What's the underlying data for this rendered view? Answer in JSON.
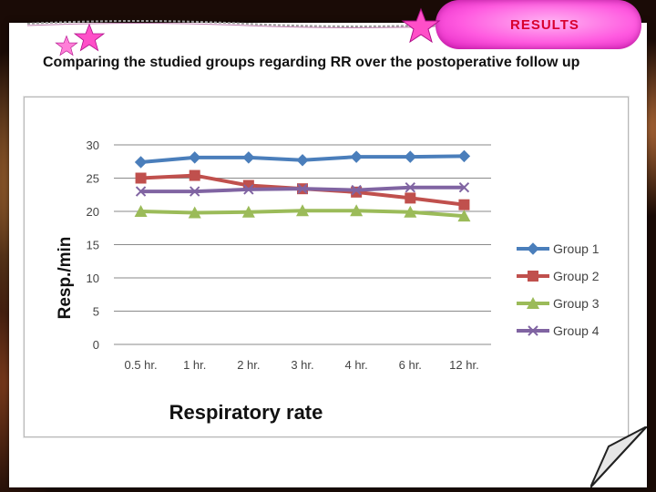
{
  "header": {
    "badge_label": "RESULTS",
    "subtitle": "Comparing the studied groups regarding RR over the postoperative follow up"
  },
  "colors": {
    "accent_pink": "#ff5ae0",
    "results_text": "#d8002e"
  },
  "icons": [
    "star-icon",
    "page-curl-icon"
  ],
  "chart_data": {
    "type": "line",
    "title": "Respiratory rate",
    "xlabel": "",
    "ylabel": "Resp./min",
    "categories": [
      "0.5 hr.",
      "1 hr.",
      "2 hr.",
      "3 hr.",
      "4 hr.",
      "6 hr.",
      "12 hr."
    ],
    "ylim": [
      0,
      30
    ],
    "yticks": [
      0,
      5,
      10,
      15,
      20,
      25,
      30
    ],
    "grid": true,
    "legend_position": "right",
    "series": [
      {
        "name": "Group 1",
        "values": [
          27.4,
          28.1,
          28.1,
          27.7,
          28.2,
          28.2,
          28.3
        ],
        "color": "#4a7ebb",
        "marker": "diamond"
      },
      {
        "name": "Group 2",
        "values": [
          25.0,
          25.4,
          23.9,
          23.4,
          22.9,
          22.0,
          21.0
        ],
        "color": "#c0504d",
        "marker": "square"
      },
      {
        "name": "Group 3",
        "values": [
          20.0,
          19.8,
          19.9,
          20.1,
          20.1,
          19.9,
          19.3
        ],
        "color": "#9bbb59",
        "marker": "triangle"
      },
      {
        "name": "Group 4",
        "values": [
          23.0,
          23.0,
          23.3,
          23.4,
          23.2,
          23.6,
          23.6
        ],
        "color": "#8064a2",
        "marker": "x"
      }
    ]
  }
}
